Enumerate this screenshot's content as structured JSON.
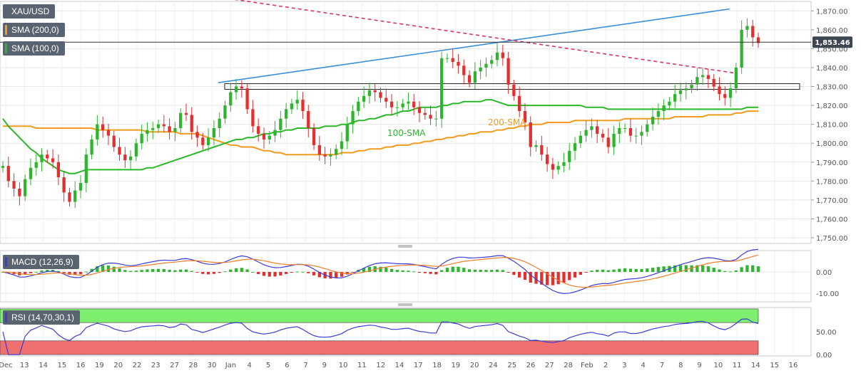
{
  "chart_data": {
    "type": "candlestick",
    "symbol": "XAU/USD",
    "price_axis": {
      "ticks": [
        "1,870.00",
        "1,860.00",
        "1,850.00",
        "1,840.00",
        "1,830.00",
        "1,820.00",
        "1,810.00",
        "1,800.00",
        "1,790.00",
        "1,780.00",
        "1,770.00",
        "1,760.00",
        "1,750.00"
      ],
      "tick_values": [
        1870,
        1860,
        1850,
        1840,
        1830,
        1820,
        1810,
        1800,
        1790,
        1780,
        1770,
        1760,
        1750
      ],
      "ylim": [
        1747,
        1875
      ]
    },
    "last_price": {
      "label": "1,853.46",
      "value": 1853.46
    },
    "date_axis": {
      "labels": [
        "Dec",
        "13",
        "14",
        "15",
        "16",
        "19",
        "20",
        "22",
        "23",
        "27",
        "28",
        "30",
        "Jan",
        "4",
        "5",
        "6",
        "7",
        "9",
        "10",
        "11",
        "12",
        "14",
        "17",
        "18",
        "19",
        "20",
        "24",
        "25",
        "26",
        "27",
        "28",
        "Feb",
        "2",
        "3",
        "4",
        "7",
        "8",
        "9",
        "10",
        "11",
        "14",
        "15",
        "16"
      ]
    },
    "indicators": [
      {
        "name": "SMA (200,0)",
        "label": "200-SMA",
        "color": "#f39a1e"
      },
      {
        "name": "SMA (100,0)",
        "label": "100-SMA",
        "color": "#2ab82a"
      }
    ],
    "annotations": {
      "support_zone": [
        1828.5,
        1831.5
      ],
      "rising_trendline": {
        "from": [
          12.5,
          1832
        ],
        "to": [
          42.2,
          1871
        ]
      },
      "falling_trendline": {
        "from": [
          10.5,
          1880
        ],
        "to": [
          42.6,
          1837
        ]
      }
    },
    "series": [
      {
        "name": "close",
        "values": [
          1788,
          1780,
          1776,
          1772,
          1781,
          1787,
          1790,
          1794,
          1792,
          1790,
          1782,
          1774,
          1769,
          1775,
          1779,
          1794,
          1802,
          1810,
          1807,
          1804,
          1798,
          1794,
          1791,
          1793,
          1800,
          1805,
          1807,
          1808,
          1810,
          1809,
          1806,
          1808,
          1816,
          1815,
          1806,
          1803,
          1799,
          1803,
          1808,
          1813,
          1820,
          1827,
          1830,
          1829,
          1818,
          1809,
          1805,
          1802,
          1804,
          1807,
          1813,
          1818,
          1821,
          1823,
          1817,
          1808,
          1799,
          1794,
          1793,
          1794,
          1797,
          1801,
          1810,
          1817,
          1822,
          1825,
          1828,
          1827,
          1824,
          1822,
          1819,
          1819,
          1821,
          1822,
          1819,
          1816,
          1815,
          1813,
          1813,
          1845,
          1845,
          1843,
          1841,
          1836,
          1832,
          1838,
          1840,
          1842,
          1844,
          1848,
          1845,
          1831,
          1825,
          1817,
          1811,
          1798,
          1799,
          1794,
          1789,
          1786,
          1788,
          1790,
          1796,
          1800,
          1804,
          1807,
          1809,
          1805,
          1803,
          1798,
          1805,
          1808,
          1808,
          1804,
          1804,
          1806,
          1810,
          1814,
          1817,
          1820,
          1822,
          1826,
          1828,
          1829,
          1831,
          1835,
          1836,
          1834,
          1830,
          1826,
          1824,
          1829,
          1840,
          1860,
          1862,
          1856,
          1853
        ]
      },
      {
        "name": "SMA (100,0)",
        "values": [
          1813,
          1809,
          1806,
          1803,
          1800,
          1797,
          1795,
          1792,
          1790,
          1788,
          1786,
          1785,
          1784,
          1784,
          1785,
          1786,
          1786,
          1786,
          1786,
          1786,
          1786,
          1786,
          1786,
          1786,
          1786,
          1786,
          1787,
          1787,
          1788,
          1789,
          1790,
          1791,
          1792,
          1793,
          1794,
          1795,
          1796,
          1797,
          1798,
          1799,
          1800,
          1801,
          1802,
          1802,
          1803,
          1803,
          1804,
          1805,
          1805,
          1806,
          1806,
          1807,
          1807,
          1808,
          1808,
          1808,
          1808,
          1808,
          1809,
          1809,
          1809,
          1810,
          1810,
          1811,
          1812,
          1812,
          1813,
          1813,
          1814,
          1815,
          1815,
          1816,
          1817,
          1817,
          1818,
          1819,
          1819,
          1819,
          1819,
          1820,
          1820,
          1821,
          1821,
          1822,
          1822,
          1822,
          1822,
          1823,
          1823,
          1822,
          1821,
          1820,
          1820,
          1820,
          1820,
          1820,
          1820,
          1820,
          1820,
          1820,
          1820,
          1820,
          1820,
          1820,
          1820,
          1819,
          1819,
          1819,
          1819,
          1818,
          1818,
          1818,
          1818,
          1818,
          1818,
          1818,
          1818,
          1818,
          1818,
          1818,
          1818,
          1818,
          1818,
          1818,
          1818,
          1818,
          1818,
          1818,
          1818,
          1818,
          1818,
          1818,
          1818,
          1818,
          1819,
          1819,
          1819
        ]
      },
      {
        "name": "SMA (200,0)",
        "values": [
          1809,
          1809,
          1809,
          1809,
          1809,
          1809,
          1808,
          1808,
          1808,
          1808,
          1808,
          1808,
          1808,
          1808,
          1808,
          1808,
          1808,
          1807,
          1807,
          1807,
          1807,
          1807,
          1807,
          1807,
          1807,
          1807,
          1806,
          1806,
          1806,
          1806,
          1806,
          1806,
          1805,
          1805,
          1805,
          1805,
          1804,
          1803,
          1802,
          1801,
          1800,
          1799,
          1799,
          1798,
          1798,
          1798,
          1797,
          1796,
          1796,
          1795,
          1795,
          1794,
          1794,
          1794,
          1794,
          1794,
          1794,
          1794,
          1794,
          1794,
          1794,
          1795,
          1795,
          1795,
          1796,
          1796,
          1797,
          1797,
          1797,
          1798,
          1798,
          1799,
          1799,
          1799,
          1800,
          1800,
          1801,
          1801,
          1802,
          1802,
          1803,
          1803,
          1804,
          1804,
          1805,
          1805,
          1806,
          1806,
          1806,
          1807,
          1807,
          1808,
          1808,
          1809,
          1809,
          1810,
          1810,
          1810,
          1811,
          1811,
          1811,
          1811,
          1811,
          1812,
          1812,
          1812,
          1812,
          1812,
          1812,
          1812,
          1812,
          1812,
          1813,
          1813,
          1813,
          1813,
          1813,
          1813,
          1813,
          1813,
          1813,
          1814,
          1814,
          1814,
          1814,
          1814,
          1814,
          1815,
          1815,
          1815,
          1815,
          1815,
          1816,
          1816,
          1817,
          1817,
          1817
        ]
      }
    ],
    "macd": {
      "label": "MACD (12,26,9)",
      "ticks": [
        "0.00",
        "-10.00"
      ],
      "tick_values": [
        0,
        -10
      ],
      "ylim": [
        -14,
        10
      ],
      "macd_color": "#3b3bd6",
      "signal_color": "#f07f2a"
    },
    "rsi": {
      "label": "RSI (14,70,30,1)",
      "ticks": [
        "50.00",
        "0.00"
      ],
      "tick_values": [
        50,
        0
      ],
      "ylim": [
        -3,
        103
      ],
      "overbought": 70,
      "oversold": 30,
      "color": "#3b3bd6"
    },
    "colors": {
      "up": "#2db62d",
      "down": "#e0302f",
      "grid": "#e6e6e6",
      "axis_text": "#555555",
      "trend_up": "#3a8fd8",
      "trend_down": "#d6356a"
    }
  }
}
